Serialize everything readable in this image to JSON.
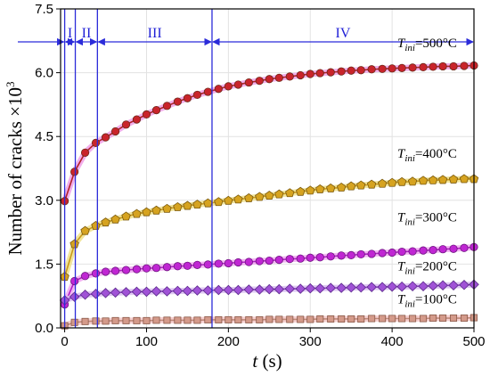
{
  "chart_data": {
    "type": "line",
    "xlabel": {
      "var": "t",
      "unit": " (s)"
    },
    "ylabel": {
      "text": "Number of cracks ×10",
      "sup": "3"
    },
    "xlim": [
      -5,
      500
    ],
    "ylim": [
      0,
      7.5
    ],
    "x_ticks": [
      0,
      100,
      200,
      300,
      400,
      500
    ],
    "y_ticks": [
      0.0,
      1.5,
      3.0,
      4.5,
      6.0,
      7.5
    ],
    "grid": true,
    "stage_boundaries": [
      0,
      13,
      40,
      180
    ],
    "stage_divider_color": "#2b2bd9",
    "stages": [
      {
        "label": "I",
        "from": 0,
        "to": 13
      },
      {
        "label": "II",
        "from": 13,
        "to": 40
      },
      {
        "label": "III",
        "from": 40,
        "to": 180
      },
      {
        "label": "IV",
        "from": 180,
        "to": 500
      }
    ],
    "series": [
      {
        "name": "T_ini=500°C",
        "label_prefix": "T",
        "label_sub": "ini",
        "label_suffix": "=500°C",
        "label_at": 6.6,
        "marker": "circle",
        "marker_color": "#c9242b",
        "marker_edge": "#6a2a1a",
        "line_color": "#b3202a",
        "halo": "#f0a0e8",
        "x": [
          0,
          12,
          25,
          38,
          50,
          62,
          75,
          88,
          100,
          112,
          125,
          138,
          150,
          162,
          175,
          188,
          200,
          212,
          225,
          238,
          250,
          262,
          275,
          288,
          300,
          312,
          325,
          338,
          350,
          362,
          375,
          388,
          400,
          412,
          425,
          438,
          450,
          462,
          475,
          488,
          500
        ],
        "y": [
          2.98,
          3.67,
          4.12,
          4.35,
          4.48,
          4.62,
          4.78,
          4.9,
          5.02,
          5.12,
          5.22,
          5.32,
          5.4,
          5.48,
          5.55,
          5.62,
          5.68,
          5.72,
          5.77,
          5.81,
          5.85,
          5.88,
          5.91,
          5.94,
          5.97,
          5.99,
          6.01,
          6.03,
          6.05,
          6.06,
          6.08,
          6.09,
          6.1,
          6.11,
          6.12,
          6.13,
          6.14,
          6.15,
          6.15,
          6.16,
          6.17
        ]
      },
      {
        "name": "T_ini=400°C",
        "label_prefix": "T",
        "label_sub": "ini",
        "label_suffix": "=400°C",
        "label_at": 4.0,
        "marker": "pentagon",
        "marker_color": "#d6a320",
        "marker_edge": "#7a5a10",
        "line_color": "#c99a1a",
        "halo": "#f0e08a",
        "x": [
          0,
          12,
          25,
          38,
          50,
          62,
          75,
          88,
          100,
          112,
          125,
          138,
          150,
          162,
          175,
          188,
          200,
          212,
          225,
          238,
          250,
          262,
          275,
          288,
          300,
          312,
          325,
          338,
          350,
          362,
          375,
          388,
          400,
          412,
          425,
          438,
          450,
          462,
          475,
          488,
          500
        ],
        "y": [
          1.2,
          1.97,
          2.28,
          2.4,
          2.48,
          2.55,
          2.62,
          2.68,
          2.72,
          2.76,
          2.8,
          2.84,
          2.87,
          2.9,
          2.93,
          2.96,
          2.99,
          3.02,
          3.05,
          3.08,
          3.11,
          3.14,
          3.17,
          3.2,
          3.23,
          3.26,
          3.28,
          3.3,
          3.33,
          3.35,
          3.37,
          3.39,
          3.41,
          3.43,
          3.44,
          3.46,
          3.47,
          3.48,
          3.49,
          3.5,
          3.5
        ]
      },
      {
        "name": "T_ini=300°C",
        "label_prefix": "T",
        "label_sub": "ini",
        "label_suffix": "=300°C",
        "label_at": 2.5,
        "marker": "circle",
        "marker_color": "#c026d3",
        "marker_edge": "#6e1880",
        "line_color": "#b01fc4",
        "halo": "#f2a6f2",
        "x": [
          0,
          12,
          25,
          38,
          50,
          62,
          75,
          88,
          100,
          112,
          125,
          138,
          150,
          162,
          175,
          188,
          200,
          212,
          225,
          238,
          250,
          262,
          275,
          288,
          300,
          312,
          325,
          338,
          350,
          362,
          375,
          388,
          400,
          412,
          425,
          438,
          450,
          462,
          475,
          488,
          500
        ],
        "y": [
          0.55,
          1.1,
          1.22,
          1.28,
          1.32,
          1.34,
          1.36,
          1.38,
          1.4,
          1.41,
          1.43,
          1.45,
          1.46,
          1.48,
          1.49,
          1.51,
          1.52,
          1.54,
          1.55,
          1.57,
          1.58,
          1.6,
          1.62,
          1.63,
          1.65,
          1.66,
          1.68,
          1.7,
          1.71,
          1.73,
          1.74,
          1.76,
          1.77,
          1.79,
          1.8,
          1.82,
          1.83,
          1.85,
          1.86,
          1.88,
          1.9
        ]
      },
      {
        "name": "T_ini=200°C",
        "label_prefix": "T",
        "label_sub": "ini",
        "label_suffix": "=200°C",
        "label_at": 1.35,
        "marker": "diamond",
        "marker_color": "#a052d6",
        "marker_edge": "#5a2a8a",
        "line_color": "#9448cc",
        "halo": "#dcc0f2",
        "x": [
          0,
          12,
          25,
          38,
          50,
          62,
          75,
          88,
          100,
          112,
          125,
          138,
          150,
          162,
          175,
          188,
          200,
          212,
          225,
          238,
          250,
          262,
          275,
          288,
          300,
          312,
          325,
          338,
          350,
          362,
          375,
          388,
          400,
          412,
          425,
          438,
          450,
          462,
          475,
          488,
          500
        ],
        "y": [
          0.65,
          0.73,
          0.78,
          0.8,
          0.82,
          0.83,
          0.84,
          0.85,
          0.85,
          0.86,
          0.86,
          0.87,
          0.87,
          0.88,
          0.88,
          0.89,
          0.89,
          0.89,
          0.9,
          0.9,
          0.91,
          0.91,
          0.92,
          0.92,
          0.93,
          0.93,
          0.94,
          0.94,
          0.95,
          0.95,
          0.96,
          0.96,
          0.97,
          0.97,
          0.98,
          0.98,
          0.99,
          1.0,
          1.0,
          1.01,
          1.02
        ]
      },
      {
        "name": "T_ini=100°C",
        "label_prefix": "T",
        "label_sub": "ini",
        "label_suffix": "=100°C",
        "label_at": 0.58,
        "marker": "square",
        "marker_color": "#d49a8a",
        "marker_edge": "#8a5a4a",
        "line_color": "#c08878",
        "halo": "#f5c8c8",
        "x": [
          0,
          12,
          25,
          38,
          50,
          62,
          75,
          88,
          100,
          112,
          125,
          138,
          150,
          162,
          175,
          188,
          200,
          212,
          225,
          238,
          250,
          262,
          275,
          288,
          300,
          312,
          325,
          338,
          350,
          362,
          375,
          388,
          400,
          412,
          425,
          438,
          450,
          462,
          475,
          488,
          500
        ],
        "y": [
          0.05,
          0.13,
          0.15,
          0.16,
          0.16,
          0.17,
          0.17,
          0.17,
          0.17,
          0.18,
          0.18,
          0.18,
          0.18,
          0.18,
          0.19,
          0.19,
          0.19,
          0.19,
          0.19,
          0.19,
          0.2,
          0.2,
          0.2,
          0.2,
          0.2,
          0.21,
          0.21,
          0.21,
          0.21,
          0.21,
          0.22,
          0.22,
          0.22,
          0.22,
          0.22,
          0.22,
          0.23,
          0.23,
          0.23,
          0.23,
          0.24
        ]
      }
    ]
  }
}
